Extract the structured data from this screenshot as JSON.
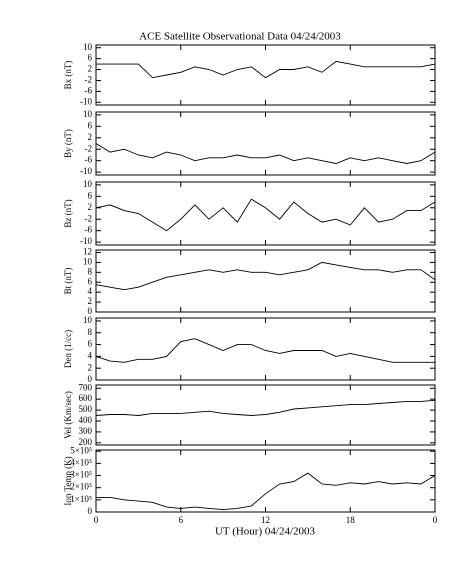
{
  "chart_data": [
    {
      "type": "line",
      "title": "ACE Satellite Observational Data   04/24/2003",
      "ylabel": "Bx (nT)",
      "color": "#000000",
      "x": [
        0,
        1,
        2,
        3,
        4,
        5,
        6,
        7,
        8,
        9,
        10,
        11,
        12,
        13,
        14,
        15,
        16,
        17,
        18,
        19,
        20,
        21,
        22,
        23,
        24
      ],
      "values": [
        4,
        4,
        4,
        4,
        -1,
        0,
        1,
        3,
        2,
        0,
        2,
        3,
        -1,
        2,
        2,
        3,
        1,
        5,
        4,
        3,
        3,
        3,
        3,
        3,
        4
      ],
      "xlim": [
        0,
        24
      ],
      "ylim": [
        -11,
        11
      ],
      "yticks": [
        -10,
        -6,
        -2,
        2,
        6,
        10
      ]
    },
    {
      "type": "line",
      "ylabel": "By (nT)",
      "color": "#000000",
      "x": [
        0,
        1,
        2,
        3,
        4,
        5,
        6,
        7,
        8,
        9,
        10,
        11,
        12,
        13,
        14,
        15,
        16,
        17,
        18,
        19,
        20,
        21,
        22,
        23,
        24
      ],
      "values": [
        0,
        -3,
        -2,
        -4,
        -5,
        -3,
        -4,
        -6,
        -5,
        -5,
        -4,
        -5,
        -5,
        -4,
        -6,
        -5,
        -6,
        -7,
        -5,
        -6,
        -5,
        -6,
        -7,
        -6,
        -3
      ],
      "xlim": [
        0,
        24
      ],
      "ylim": [
        -11,
        11
      ],
      "yticks": [
        -10,
        -6,
        -2,
        2,
        6,
        10
      ]
    },
    {
      "type": "line",
      "ylabel": "Bz (nT)",
      "color": "#000000",
      "x": [
        0,
        1,
        2,
        3,
        4,
        5,
        6,
        7,
        8,
        9,
        10,
        11,
        12,
        13,
        14,
        15,
        16,
        17,
        18,
        19,
        20,
        21,
        22,
        23,
        24
      ],
      "values": [
        2,
        3,
        1,
        0,
        -3,
        -6,
        -2,
        3,
        -2,
        2,
        -3,
        5,
        2,
        -2,
        4,
        0,
        -3,
        -2,
        -4,
        2,
        -3,
        -2,
        1,
        1,
        4
      ],
      "xlim": [
        0,
        24
      ],
      "ylim": [
        -11,
        11
      ],
      "yticks": [
        -10,
        -6,
        -2,
        2,
        6,
        10
      ]
    },
    {
      "type": "line",
      "ylabel": "Bt (nT)",
      "color": "#000000",
      "x": [
        0,
        1,
        2,
        3,
        4,
        5,
        6,
        7,
        8,
        9,
        10,
        11,
        12,
        13,
        14,
        15,
        16,
        17,
        18,
        19,
        20,
        21,
        22,
        23,
        24
      ],
      "values": [
        5.5,
        5,
        4.5,
        5,
        6,
        7,
        7.5,
        8,
        8.5,
        8,
        8.5,
        8,
        8,
        7.5,
        8,
        8.5,
        10,
        9.5,
        9,
        8.5,
        8.5,
        8,
        8.5,
        8.5,
        6.5
      ],
      "xlim": [
        0,
        24
      ],
      "ylim": [
        0,
        12.5
      ],
      "yticks": [
        0,
        2,
        4,
        6,
        8,
        10,
        12
      ]
    },
    {
      "type": "line",
      "ylabel": "Den (1/cc)",
      "color": "#000000",
      "x": [
        0,
        1,
        2,
        3,
        4,
        5,
        6,
        7,
        8,
        9,
        10,
        11,
        12,
        13,
        14,
        15,
        16,
        17,
        18,
        19,
        20,
        21,
        22,
        23,
        24
      ],
      "values": [
        4,
        3.2,
        3,
        3.5,
        3.5,
        4,
        6.5,
        7,
        6,
        5,
        6,
        6,
        5,
        4.5,
        5,
        5,
        5,
        4,
        4.5,
        4,
        3.5,
        3,
        3,
        3,
        3
      ],
      "xlim": [
        0,
        24
      ],
      "ylim": [
        0,
        10.5
      ],
      "yticks": [
        0,
        2,
        4,
        6,
        8,
        10
      ]
    },
    {
      "type": "line",
      "ylabel": "Vel (Km/sec)",
      "color": "#000000",
      "x": [
        0,
        1,
        2,
        3,
        4,
        5,
        6,
        7,
        8,
        9,
        10,
        11,
        12,
        13,
        14,
        15,
        16,
        17,
        18,
        19,
        20,
        21,
        22,
        23,
        24
      ],
      "values": [
        450,
        460,
        460,
        450,
        470,
        470,
        470,
        480,
        490,
        470,
        460,
        450,
        460,
        480,
        510,
        520,
        530,
        540,
        550,
        550,
        560,
        570,
        580,
        580,
        590
      ],
      "xlim": [
        0,
        24
      ],
      "ylim": [
        180,
        730
      ],
      "yticks": [
        200,
        300,
        400,
        500,
        600,
        700
      ]
    },
    {
      "type": "line",
      "ylabel": "Ion Temp (K)",
      "xlabel": "UT (Hour)   04/24/2003",
      "color": "#000000",
      "x": [
        0,
        1,
        2,
        3,
        4,
        5,
        6,
        7,
        8,
        9,
        10,
        11,
        12,
        13,
        14,
        15,
        16,
        17,
        18,
        19,
        20,
        21,
        22,
        23,
        24
      ],
      "values": [
        120000,
        120000,
        100000,
        90000,
        80000,
        40000,
        30000,
        40000,
        30000,
        20000,
        30000,
        50000,
        150000,
        230000,
        250000,
        320000,
        230000,
        220000,
        240000,
        230000,
        250000,
        230000,
        240000,
        230000,
        300000
      ],
      "xlim": [
        0,
        24
      ],
      "ylim": [
        0,
        510000
      ],
      "xticks": [
        0,
        6,
        12,
        18,
        {
          "value": 24,
          "label": "0"
        }
      ],
      "yticks": [
        0,
        {
          "value": 100000,
          "label": "1×10⁵"
        },
        {
          "value": 200000,
          "label": "2×10⁵"
        },
        {
          "value": 300000,
          "label": "3×10⁵"
        },
        {
          "value": 400000,
          "label": "4×10⁵"
        },
        {
          "value": 500000,
          "label": "5×10⁵"
        }
      ]
    }
  ]
}
